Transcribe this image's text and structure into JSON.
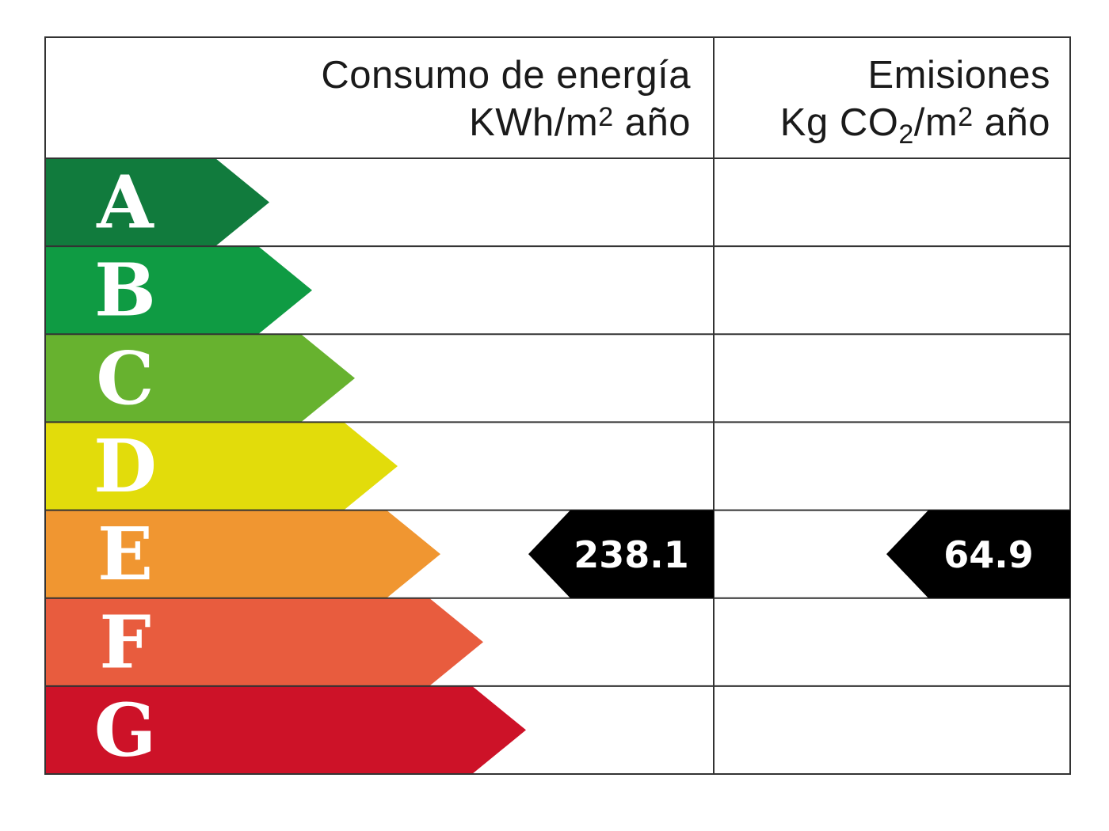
{
  "header": {
    "energy_title": "Consumo de energía",
    "energy_unit_pre": "KWh/m",
    "energy_unit_sup": "2",
    "energy_unit_post": " año",
    "emissions_title": "Emisiones",
    "emissions_unit_pre": "Kg CO",
    "emissions_unit_sub": "2",
    "emissions_unit_mid": "/m",
    "emissions_unit_sup": "2",
    "emissions_unit_post": " año"
  },
  "ratings": [
    {
      "letter": "A",
      "color": "#117b3d"
    },
    {
      "letter": "B",
      "color": "#0f9b43"
    },
    {
      "letter": "C",
      "color": "#67b22f"
    },
    {
      "letter": "D",
      "color": "#e2dc0b"
    },
    {
      "letter": "E",
      "color": "#f09631"
    },
    {
      "letter": "F",
      "color": "#e85c3e"
    },
    {
      "letter": "G",
      "color": "#cd1228"
    }
  ],
  "result": {
    "rating": "E",
    "energy_value": "238.1",
    "emissions_value": "64.9",
    "marker_color": "#000000"
  }
}
